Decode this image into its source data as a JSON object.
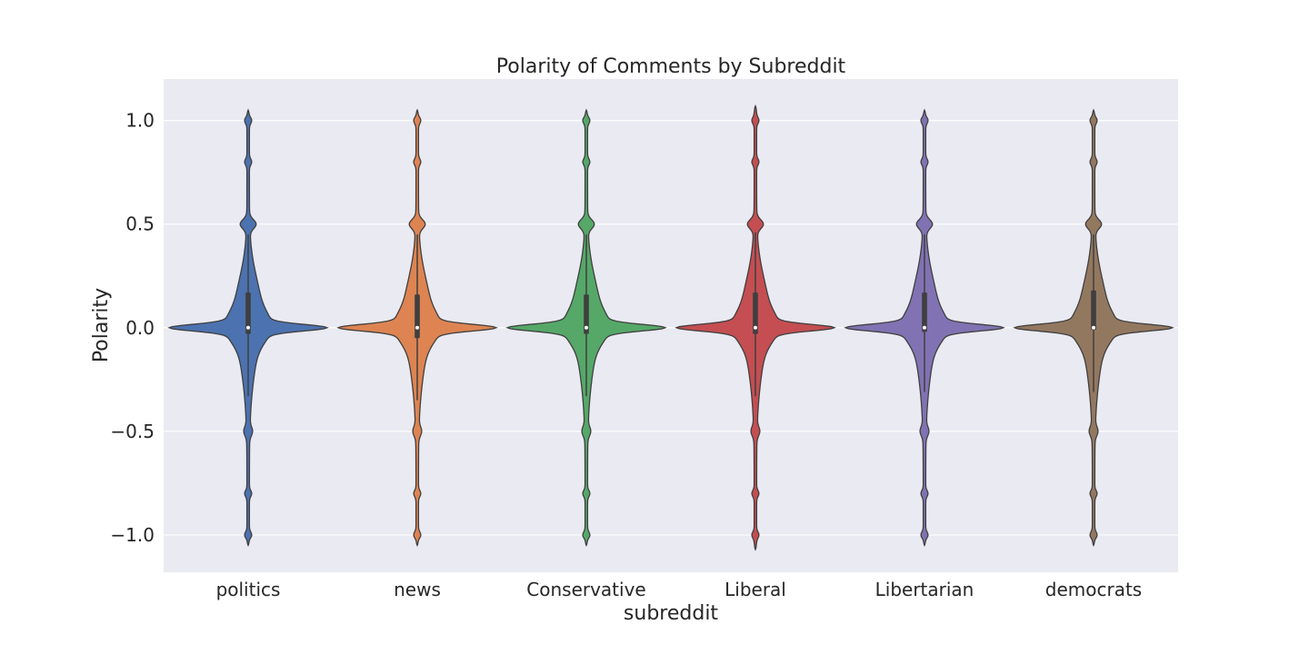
{
  "chart_data": {
    "type": "violin",
    "title": "Polarity of Comments by Subreddit",
    "xlabel": "subreddit",
    "ylabel": "Polarity",
    "ylim": [
      -1.18,
      1.2
    ],
    "yticks": [
      {
        "value": 1.0,
        "label": "1.0"
      },
      {
        "value": 0.5,
        "label": "0.5"
      },
      {
        "value": 0.0,
        "label": "0.0"
      },
      {
        "value": -0.5,
        "label": "−0.5"
      },
      {
        "value": -1.0,
        "label": "−1.0"
      }
    ],
    "grid": true,
    "background": "#eaeaf2",
    "categories": [
      "politics",
      "news",
      "Conservative",
      "Liberal",
      "Libertarian",
      "democrats"
    ],
    "series": [
      {
        "category": "politics",
        "color": "#4c72b0",
        "min": -1.05,
        "max": 1.05,
        "q1": -0.03,
        "median": 0.0,
        "q3": 0.17,
        "whisker_low": -0.33,
        "whisker_high": 0.45
      },
      {
        "category": "news",
        "color": "#dd8452",
        "min": -1.05,
        "max": 1.05,
        "q1": -0.05,
        "median": 0.0,
        "q3": 0.16,
        "whisker_low": -0.35,
        "whisker_high": 0.45
      },
      {
        "category": "Conservative",
        "color": "#55a868",
        "min": -1.05,
        "max": 1.05,
        "q1": -0.03,
        "median": 0.0,
        "q3": 0.16,
        "whisker_low": -0.33,
        "whisker_high": 0.45
      },
      {
        "category": "Liberal",
        "color": "#c44e52",
        "min": -1.07,
        "max": 1.07,
        "q1": -0.03,
        "median": 0.0,
        "q3": 0.17,
        "whisker_low": -0.33,
        "whisker_high": 0.46
      },
      {
        "category": "Libertarian",
        "color": "#8172b3",
        "min": -1.05,
        "max": 1.05,
        "q1": -0.02,
        "median": 0.0,
        "q3": 0.17,
        "whisker_low": -0.31,
        "whisker_high": 0.45
      },
      {
        "category": "democrats",
        "color": "#937860",
        "min": -1.05,
        "max": 1.05,
        "q1": -0.01,
        "median": 0.0,
        "q3": 0.18,
        "whisker_low": -0.31,
        "whisker_high": 0.45
      }
    ]
  }
}
